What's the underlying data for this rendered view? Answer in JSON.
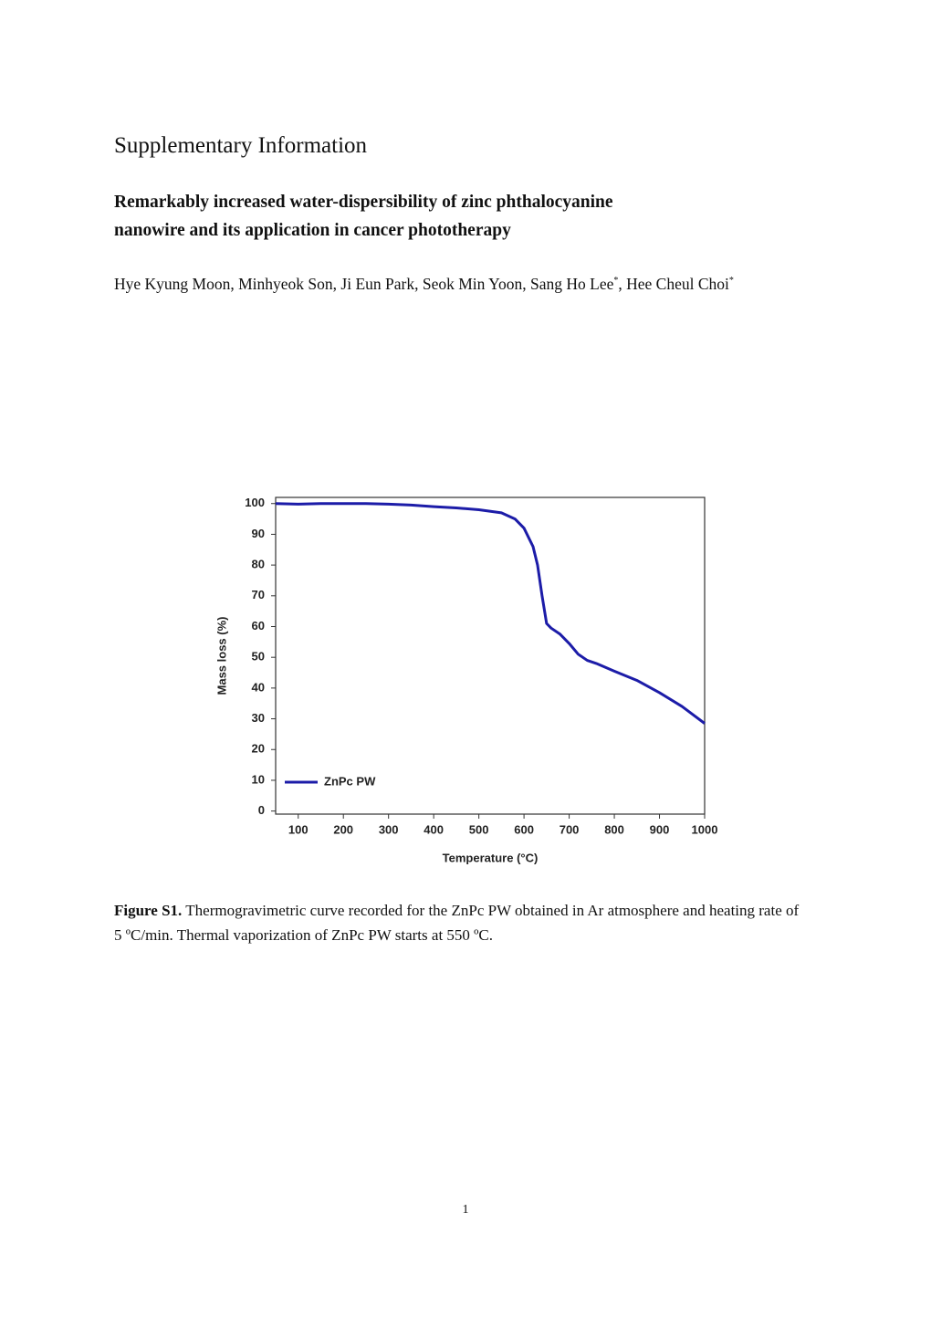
{
  "header": {
    "title": "Supplementary Information"
  },
  "paper": {
    "title_lines": [
      "Remarkably increased water-dispersibility of zinc phthalocyanine",
      "nanowire and its application in cancer phototherapy"
    ],
    "authors": [
      {
        "text": "Hye Kyung Moon, Minhyeok Son, Ji Eun Park, Seok Min Yoon, Sang Ho Lee",
        "mark": "*"
      },
      {
        "text": ", Hee Cheul Choi",
        "mark": "*"
      }
    ]
  },
  "chart_data": {
    "type": "line",
    "xlabel": "Temperature (°C)",
    "ylabel": "Mass loss (%)",
    "x": [
      50,
      100,
      150,
      200,
      250,
      300,
      350,
      400,
      450,
      500,
      550,
      580,
      600,
      620,
      630,
      640,
      650,
      660,
      680,
      700,
      720,
      740,
      760,
      800,
      850,
      900,
      950,
      1000
    ],
    "series": [
      {
        "name": "ZnPc PW",
        "color": "#1c1ca8",
        "values": [
          100,
          99.8,
          100,
          100,
          100,
          99.8,
          99.5,
          99,
          98.6,
          98,
          97,
          95,
          92,
          86,
          80,
          70,
          61,
          59.5,
          57.5,
          54.5,
          51,
          49,
          48,
          45.5,
          42.5,
          38.5,
          34,
          28.5
        ]
      }
    ],
    "xlim": [
      50,
      1000
    ],
    "ylim": [
      -1,
      102
    ],
    "xticks": [
      100,
      200,
      300,
      400,
      500,
      600,
      700,
      800,
      900,
      1000
    ],
    "yticks": [
      0,
      10,
      20,
      30,
      40,
      50,
      60,
      70,
      80,
      90,
      100
    ],
    "legend": "lower left",
    "grid": false
  },
  "caption": {
    "label": "Figure S1.",
    "text": "Thermogravimetric curve recorded for the ZnPc PW obtained in Ar atmosphere and heating rate of 5 ºC/min. Thermal vaporization of ZnPc PW starts at 550 ºC."
  },
  "page_number": "1"
}
